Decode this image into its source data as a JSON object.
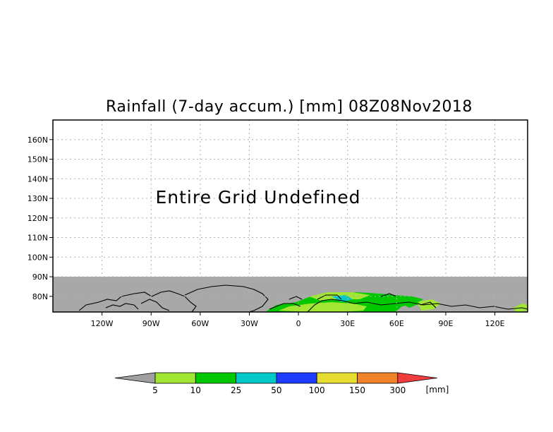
{
  "title": "Rainfall (7-day accum.) [mm] 08Z08Nov2018",
  "undefined_message": "Entire Grid Undefined",
  "map": {
    "lon_range": [
      -150,
      140
    ],
    "lat_range": [
      72,
      170
    ],
    "undefined_mask_below_lat": 90,
    "colors": {
      "undefined_gray": "#a8a8a8",
      "coastline": "#000000",
      "grid": "#b0b0b0"
    },
    "lat_ticks": [
      {
        "value": 160,
        "label": "160N"
      },
      {
        "value": 150,
        "label": "150N"
      },
      {
        "value": 140,
        "label": "140N"
      },
      {
        "value": 130,
        "label": "130N"
      },
      {
        "value": 120,
        "label": "120N"
      },
      {
        "value": 110,
        "label": "110N"
      },
      {
        "value": 100,
        "label": "100N"
      },
      {
        "value": 90,
        "label": "90N"
      },
      {
        "value": 80,
        "label": "80N"
      }
    ],
    "lon_ticks": [
      {
        "value": -120,
        "label": "120W"
      },
      {
        "value": -90,
        "label": "90W"
      },
      {
        "value": -60,
        "label": "60W"
      },
      {
        "value": -30,
        "label": "30W"
      },
      {
        "value": 0,
        "label": "0"
      },
      {
        "value": 30,
        "label": "30E"
      },
      {
        "value": 60,
        "label": "60E"
      },
      {
        "value": 90,
        "label": "90E"
      },
      {
        "value": 120,
        "label": "120E"
      }
    ]
  },
  "colorbar": {
    "unit": "[mm]",
    "under_color": "#a0a0a0",
    "over_color": "#f03c3c",
    "bins": [
      {
        "color": "#a0e632",
        "upper": "10"
      },
      {
        "color": "#00c800",
        "upper": "25"
      },
      {
        "color": "#00c8c8",
        "upper": "50"
      },
      {
        "color": "#1e3cff",
        "upper": "100"
      },
      {
        "color": "#e6dc32",
        "upper": "150"
      },
      {
        "color": "#f08228",
        "upper": "300"
      }
    ],
    "first_label": "5"
  }
}
